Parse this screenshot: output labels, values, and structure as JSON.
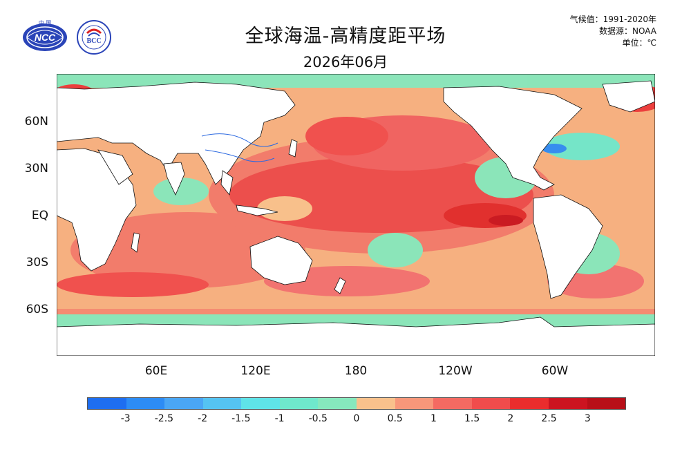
{
  "header": {
    "title": "全球海温-高精度距平场",
    "subtitle": "2026年06月",
    "climatology": "气候值：1991-2020年",
    "source": "数据源：NOAA",
    "unit": "单位：℃"
  },
  "logos": {
    "left": {
      "name": "NCC",
      "text": "NCC",
      "top_text": "中 国"
    },
    "right": {
      "name": "BCC",
      "text": "BCC"
    }
  },
  "map": {
    "projection": "cylindrical equidistant, centered 180",
    "lat_labels": [
      "60N",
      "30N",
      "EQ",
      "30S",
      "60S"
    ],
    "lon_labels": [
      "60E",
      "120E",
      "180",
      "120W",
      "60W"
    ]
  },
  "colorbar": {
    "labels": [
      "-3",
      "-2.5",
      "-2",
      "-1.5",
      "-1",
      "-0.5",
      "0",
      "0.5",
      "1",
      "1.5",
      "2",
      "2.5",
      "3"
    ],
    "colors": [
      "#1e6ef0",
      "#2d8cf5",
      "#4aa6f5",
      "#55c3f2",
      "#5fe3e8",
      "#6fe8cc",
      "#86e8bd",
      "#f9c18c",
      "#f8977a",
      "#f46a62",
      "#f04c4c",
      "#ea2d2d",
      "#cc1420",
      "#b80f18"
    ]
  }
}
